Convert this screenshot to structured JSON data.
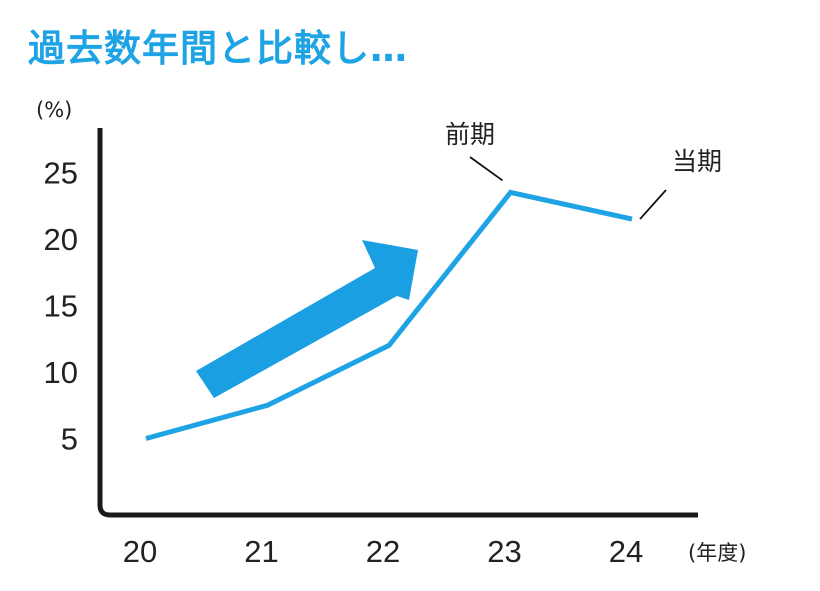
{
  "title": "過去数年間と比較し…",
  "colors": {
    "title": "#1ea3e4",
    "series": "#1ea3e4",
    "arrow": "#1a9fe2",
    "axis": "#1a1a1a"
  },
  "chart_data": {
    "type": "line",
    "title": "過去数年間と比較し…",
    "x": [
      "20",
      "21",
      "22",
      "23",
      "24"
    ],
    "series": [
      {
        "values": [
          5,
          7.5,
          12,
          23.5,
          21.5
        ]
      }
    ],
    "ylim": [
      2,
      30
    ],
    "yticks": [
      5,
      10,
      15,
      20,
      25
    ],
    "y_unit": "(%)",
    "x_unit": "(年度)",
    "grid": false,
    "annotations": [
      {
        "text": "前期",
        "x": "23"
      },
      {
        "text": "当期",
        "x": "24"
      }
    ],
    "decoration": "upward-trend-arrow"
  }
}
